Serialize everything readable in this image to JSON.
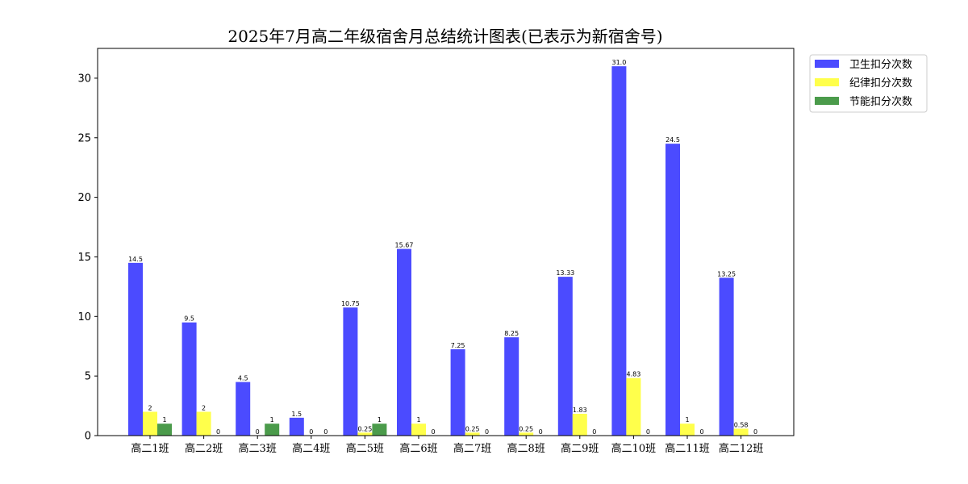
{
  "chart_data": {
    "type": "bar",
    "title": "2025年7月高二年级宿舍月总结统计图表(已表示为新宿舍号)",
    "xlabel": "",
    "ylabel": "",
    "categories": [
      "高二1班",
      "高二2班",
      "高二3班",
      "高二4班",
      "高二5班",
      "高二6班",
      "高二7班",
      "高二8班",
      "高二9班",
      "高二10班",
      "高二11班",
      "高二12班"
    ],
    "series": [
      {
        "name": "卫生扣分次数",
        "color": "#4b4bff",
        "values": [
          14.5,
          9.5,
          4.5,
          1.5,
          10.75,
          15.67,
          7.25,
          8.25,
          13.33,
          31.0,
          24.5,
          13.25
        ],
        "labels": [
          "14.5",
          "9.5",
          "4.5",
          "1.5",
          "10.75",
          "15.67",
          "7.25",
          "8.25",
          "13.33",
          "31.0",
          "24.5",
          "13.25"
        ]
      },
      {
        "name": "纪律扣分次数",
        "color": "#ffff4b",
        "values": [
          2,
          2,
          0,
          0,
          0.25,
          1,
          0.25,
          0.25,
          1.83,
          4.83,
          1,
          0.58
        ],
        "labels": [
          "2",
          "2",
          "0",
          "0",
          "0.25",
          "1",
          "0.25",
          "0.25",
          "1.83",
          "4.83",
          "1",
          "0.58"
        ]
      },
      {
        "name": "节能扣分次数",
        "color": "#4b9b4b",
        "values": [
          1,
          0,
          1,
          0,
          1,
          0,
          0,
          0,
          0,
          0,
          0,
          0
        ],
        "labels": [
          "1",
          "0",
          "1",
          "0",
          "1",
          "0",
          "0",
          "0",
          "0",
          "0",
          "0",
          "0"
        ]
      }
    ],
    "ylim": [
      0,
      32.5
    ],
    "yticks": [
      "0",
      "5",
      "10",
      "15",
      "20",
      "25",
      "30"
    ],
    "grid": false,
    "legend": "top-right, outside plot"
  }
}
